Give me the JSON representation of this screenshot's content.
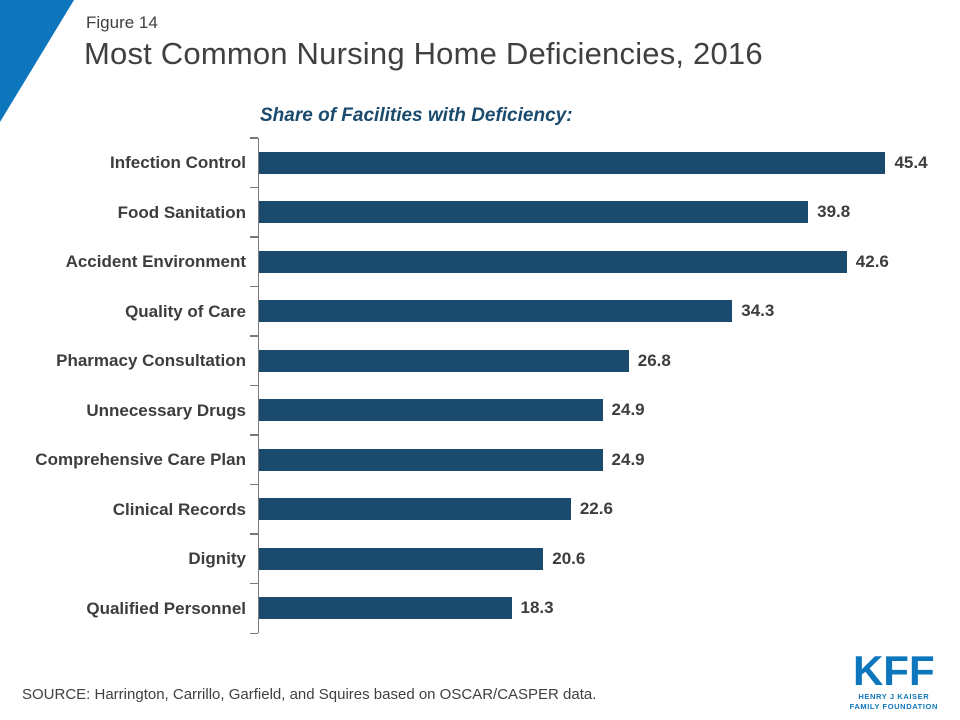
{
  "header": {
    "figure_label": "Figure 14",
    "title": "Most Common Nursing Home Deficiencies, 2016"
  },
  "chart_data": {
    "type": "bar",
    "orientation": "horizontal",
    "subtitle": "Share of Facilities with Deficiency:",
    "categories": [
      "Infection Control",
      "Food Sanitation",
      "Accident Environment",
      "Quality of Care",
      "Pharmacy Consultation",
      "Unnecessary Drugs",
      "Comprehensive Care Plan",
      "Clinical Records",
      "Dignity",
      "Qualified Personnel"
    ],
    "values": [
      45.4,
      39.8,
      42.6,
      34.3,
      26.8,
      24.9,
      24.9,
      22.6,
      20.6,
      18.3
    ],
    "xlim": [
      0,
      49.5
    ],
    "grid": false,
    "legend": false,
    "value_labels": "right-of-bar"
  },
  "footer": {
    "source": "SOURCE: Harrington, Carrillo, Garfield, and Squires based on OSCAR/CASPER data."
  },
  "logo": {
    "text": "KFF",
    "caption_line1": "HENRY J KAISER",
    "caption_line2": "FAMILY FOUNDATION"
  },
  "colors": {
    "accent_blue": "#0e76bc",
    "bar_navy": "#1a4a6d",
    "title_gray": "#404040",
    "label_gray": "#3d3d3d",
    "axis_gray": "#7a7a7a"
  }
}
